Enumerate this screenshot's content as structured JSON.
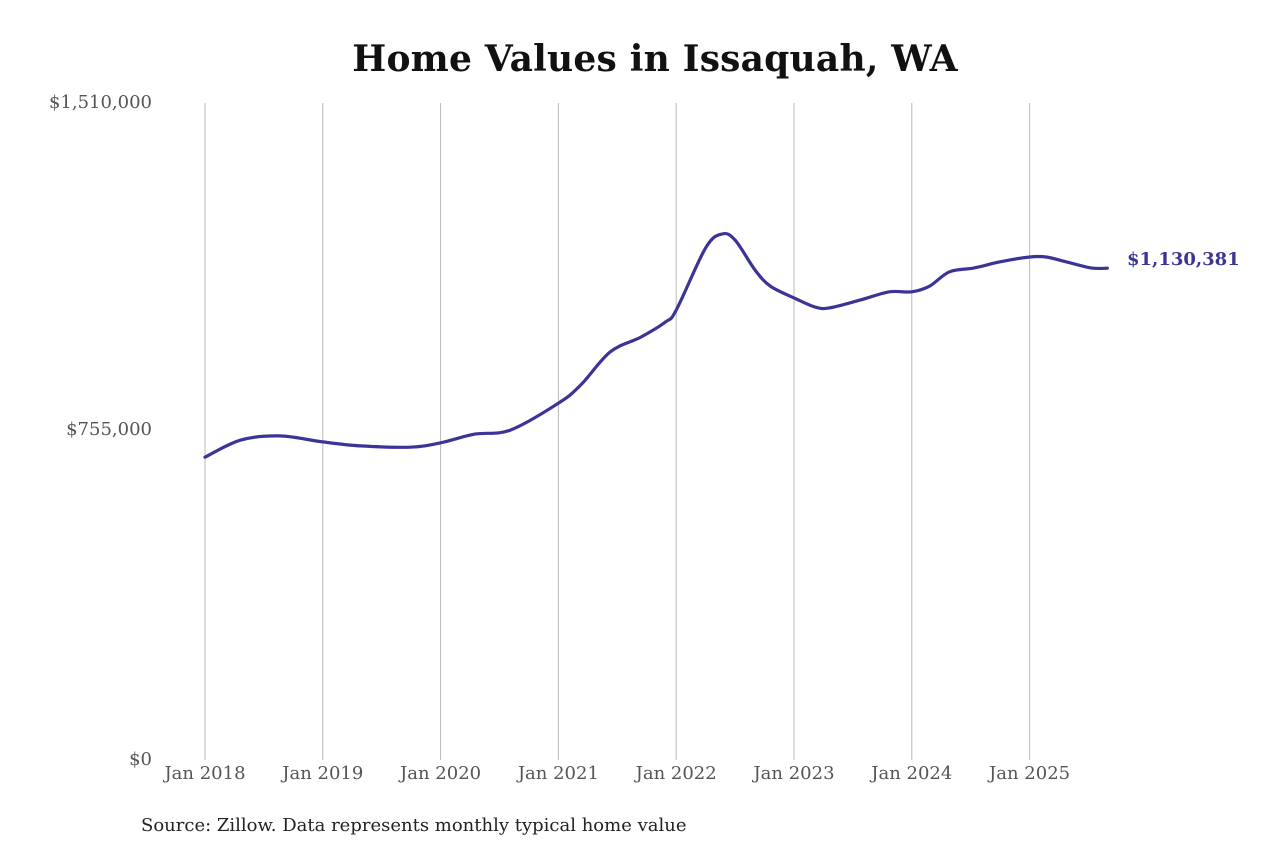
{
  "chart_data": {
    "type": "line",
    "title": "Home Values in Issaquah, WA",
    "xlabel": "",
    "ylabel": "",
    "ylim": [
      0,
      1510000
    ],
    "yticks": [
      {
        "value": 1510000,
        "label": "$1,510,000"
      },
      {
        "value": 755000,
        "label": "$755,000"
      },
      {
        "value": 0,
        "label": "$0"
      }
    ],
    "xticks": [
      "Jan 2018",
      "Jan 2019",
      "Jan 2020",
      "Jan 2021",
      "Jan 2022",
      "Jan 2023",
      "Jan 2024",
      "Jan 2025"
    ],
    "grid": {
      "vertical": true,
      "horizontal": false
    },
    "legend": "none",
    "line_color": "#3b3497",
    "series": [
      {
        "name": "Typical home value",
        "x": [
          2018.0,
          2018.3,
          2018.63,
          2019.0,
          2019.32,
          2019.74,
          2020.0,
          2020.29,
          2020.59,
          2021.0,
          2021.19,
          2021.44,
          2021.7,
          2021.91,
          2022.0,
          2022.25,
          2022.39,
          2022.5,
          2022.67,
          2022.8,
          2023.0,
          2023.18,
          2023.3,
          2023.56,
          2023.81,
          2024.0,
          2024.15,
          2024.32,
          2024.53,
          2024.75,
          2025.0,
          2025.14,
          2025.31,
          2025.52,
          2025.66
        ],
        "values": [
          696000,
          735000,
          745000,
          731000,
          722000,
          719000,
          729000,
          749000,
          758000,
          820000,
          862000,
          938000,
          972000,
          1007000,
          1034000,
          1177000,
          1209000,
          1195000,
          1126000,
          1089000,
          1062000,
          1041000,
          1039000,
          1057000,
          1076000,
          1076000,
          1089000,
          1122000,
          1131000,
          1145000,
          1156000,
          1156000,
          1145000,
          1131000,
          1130381
        ]
      }
    ],
    "annotations": [
      {
        "text": "$1,130,381",
        "at": "last point",
        "color": "#3b3497"
      }
    ],
    "source": "Source: Zillow. Data represents monthly typical home value"
  },
  "labels": {
    "title": "Home Values in Issaquah, WA",
    "y_top": "$1,510,000",
    "y_mid": "$755,000",
    "y_zero": "$0",
    "x": [
      "Jan 2018",
      "Jan 2019",
      "Jan 2020",
      "Jan 2021",
      "Jan 2022",
      "Jan 2023",
      "Jan 2024",
      "Jan 2025"
    ],
    "end_value": "$1,130,381",
    "source": "Source: Zillow. Data represents monthly typical home value"
  }
}
